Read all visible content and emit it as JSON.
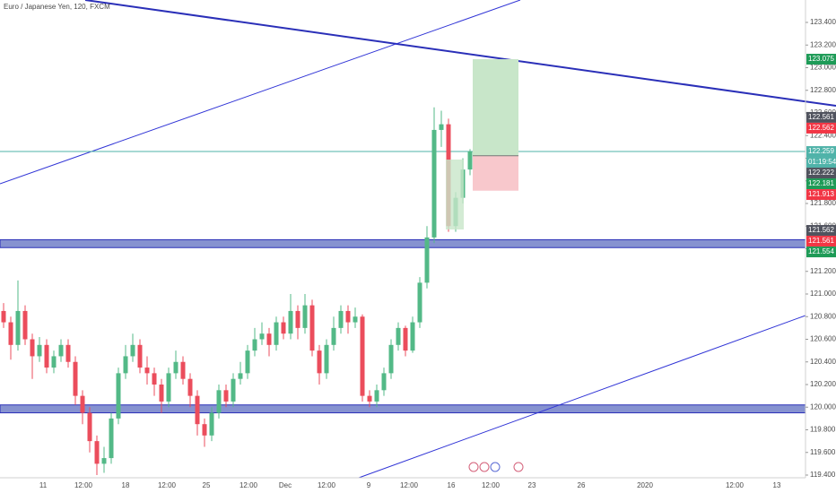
{
  "chart_data": {
    "type": "candlestick",
    "title": "Euro / Japanese Yen, 120, FXCM",
    "up_color": "#53b987",
    "down_color": "#eb4d5c",
    "ylim": [
      119.4,
      123.4
    ],
    "yticks": [
      {
        "value": 119.4,
        "label": "119.400"
      },
      {
        "value": 119.6,
        "label": "119.600"
      },
      {
        "value": 119.8,
        "label": "119.800"
      },
      {
        "value": 120.0,
        "label": "120.000"
      },
      {
        "value": 120.2,
        "label": "120.200"
      },
      {
        "value": 120.4,
        "label": "120.400"
      },
      {
        "value": 120.6,
        "label": "120.600"
      },
      {
        "value": 120.8,
        "label": "120.800"
      },
      {
        "value": 121.0,
        "label": "121.000"
      },
      {
        "value": 121.2,
        "label": "121.200"
      },
      {
        "value": 121.4,
        "label": "121.400"
      },
      {
        "value": 121.6,
        "label": "121.600"
      },
      {
        "value": 121.8,
        "label": "121.800"
      },
      {
        "value": 122.0,
        "label": "122.000"
      },
      {
        "value": 122.2,
        "label": "122.200"
      },
      {
        "value": 122.4,
        "label": "122.400"
      },
      {
        "value": 122.6,
        "label": "122.600"
      },
      {
        "value": 122.8,
        "label": "122.800"
      },
      {
        "value": 123.0,
        "label": "123.000"
      },
      {
        "value": 123.2,
        "label": "123.200"
      },
      {
        "value": 123.4,
        "label": "123.400"
      }
    ],
    "time_labels": [
      "11",
      "12:00",
      "18",
      "12:00",
      "25",
      "12:00",
      "Dec",
      "12:00",
      "9",
      "12:00",
      "16",
      "12:00",
      "23",
      "26",
      "2020",
      "12:00",
      "13"
    ],
    "candles": [
      {
        "o": 120.85,
        "h": 120.92,
        "l": 120.7,
        "c": 120.75
      },
      {
        "o": 120.75,
        "h": 120.8,
        "l": 120.42,
        "c": 120.55
      },
      {
        "o": 120.55,
        "h": 121.12,
        "l": 120.5,
        "c": 120.85
      },
      {
        "o": 120.85,
        "h": 120.9,
        "l": 120.55,
        "c": 120.6
      },
      {
        "o": 120.6,
        "h": 120.65,
        "l": 120.25,
        "c": 120.45
      },
      {
        "o": 120.45,
        "h": 120.62,
        "l": 120.4,
        "c": 120.55
      },
      {
        "o": 120.55,
        "h": 120.6,
        "l": 120.3,
        "c": 120.35
      },
      {
        "o": 120.35,
        "h": 120.5,
        "l": 120.3,
        "c": 120.45
      },
      {
        "o": 120.45,
        "h": 120.6,
        "l": 120.4,
        "c": 120.55
      },
      {
        "o": 120.55,
        "h": 120.6,
        "l": 120.35,
        "c": 120.4
      },
      {
        "o": 120.4,
        "h": 120.45,
        "l": 120.02,
        "c": 120.1
      },
      {
        "o": 120.1,
        "h": 120.15,
        "l": 119.85,
        "c": 119.95
      },
      {
        "o": 119.95,
        "h": 120.0,
        "l": 119.6,
        "c": 119.7
      },
      {
        "o": 119.7,
        "h": 119.75,
        "l": 119.4,
        "c": 119.5
      },
      {
        "o": 119.5,
        "h": 119.65,
        "l": 119.42,
        "c": 119.55
      },
      {
        "o": 119.55,
        "h": 119.95,
        "l": 119.5,
        "c": 119.9
      },
      {
        "o": 119.9,
        "h": 120.35,
        "l": 119.85,
        "c": 120.3
      },
      {
        "o": 120.3,
        "h": 120.55,
        "l": 120.25,
        "c": 120.45
      },
      {
        "o": 120.45,
        "h": 120.65,
        "l": 120.4,
        "c": 120.55
      },
      {
        "o": 120.55,
        "h": 120.6,
        "l": 120.3,
        "c": 120.35
      },
      {
        "o": 120.35,
        "h": 120.45,
        "l": 120.2,
        "c": 120.3
      },
      {
        "o": 120.3,
        "h": 120.35,
        "l": 120.1,
        "c": 120.2
      },
      {
        "o": 120.2,
        "h": 120.25,
        "l": 119.95,
        "c": 120.05
      },
      {
        "o": 120.05,
        "h": 120.35,
        "l": 120.0,
        "c": 120.3
      },
      {
        "o": 120.3,
        "h": 120.5,
        "l": 120.25,
        "c": 120.4
      },
      {
        "o": 120.4,
        "h": 120.45,
        "l": 120.2,
        "c": 120.25
      },
      {
        "o": 120.25,
        "h": 120.3,
        "l": 120.0,
        "c": 120.1
      },
      {
        "o": 120.1,
        "h": 120.15,
        "l": 119.75,
        "c": 119.85
      },
      {
        "o": 119.85,
        "h": 119.9,
        "l": 119.65,
        "c": 119.75
      },
      {
        "o": 119.75,
        "h": 120.0,
        "l": 119.7,
        "c": 119.95
      },
      {
        "o": 119.95,
        "h": 120.2,
        "l": 119.9,
        "c": 120.15
      },
      {
        "o": 120.15,
        "h": 120.2,
        "l": 120.0,
        "c": 120.05
      },
      {
        "o": 120.05,
        "h": 120.3,
        "l": 120.0,
        "c": 120.25
      },
      {
        "o": 120.25,
        "h": 120.4,
        "l": 120.2,
        "c": 120.3
      },
      {
        "o": 120.3,
        "h": 120.55,
        "l": 120.25,
        "c": 120.5
      },
      {
        "o": 120.5,
        "h": 120.7,
        "l": 120.45,
        "c": 120.6
      },
      {
        "o": 120.6,
        "h": 120.75,
        "l": 120.55,
        "c": 120.65
      },
      {
        "o": 120.65,
        "h": 120.7,
        "l": 120.45,
        "c": 120.55
      },
      {
        "o": 120.55,
        "h": 120.8,
        "l": 120.5,
        "c": 120.75
      },
      {
        "o": 120.75,
        "h": 120.8,
        "l": 120.6,
        "c": 120.65
      },
      {
        "o": 120.65,
        "h": 121.0,
        "l": 120.6,
        "c": 120.85
      },
      {
        "o": 120.85,
        "h": 120.9,
        "l": 120.6,
        "c": 120.7
      },
      {
        "o": 120.7,
        "h": 121.0,
        "l": 120.65,
        "c": 120.9
      },
      {
        "o": 120.9,
        "h": 120.95,
        "l": 120.45,
        "c": 120.5
      },
      {
        "o": 120.5,
        "h": 120.55,
        "l": 120.2,
        "c": 120.3
      },
      {
        "o": 120.3,
        "h": 120.6,
        "l": 120.25,
        "c": 120.55
      },
      {
        "o": 120.55,
        "h": 120.8,
        "l": 120.5,
        "c": 120.7
      },
      {
        "o": 120.7,
        "h": 120.9,
        "l": 120.65,
        "c": 120.85
      },
      {
        "o": 120.85,
        "h": 120.9,
        "l": 120.65,
        "c": 120.75
      },
      {
        "o": 120.75,
        "h": 120.88,
        "l": 120.7,
        "c": 120.8
      },
      {
        "o": 120.8,
        "h": 120.82,
        "l": 120.05,
        "c": 120.1
      },
      {
        "o": 120.1,
        "h": 120.15,
        "l": 120.0,
        "c": 120.05
      },
      {
        "o": 120.05,
        "h": 120.2,
        "l": 120.0,
        "c": 120.15
      },
      {
        "o": 120.15,
        "h": 120.35,
        "l": 120.1,
        "c": 120.3
      },
      {
        "o": 120.3,
        "h": 120.6,
        "l": 120.25,
        "c": 120.55
      },
      {
        "o": 120.55,
        "h": 120.75,
        "l": 120.5,
        "c": 120.7
      },
      {
        "o": 120.7,
        "h": 120.72,
        "l": 120.45,
        "c": 120.5
      },
      {
        "o": 120.5,
        "h": 120.8,
        "l": 120.48,
        "c": 120.75
      },
      {
        "o": 120.75,
        "h": 121.15,
        "l": 120.7,
        "c": 121.1
      },
      {
        "o": 121.1,
        "h": 121.6,
        "l": 121.05,
        "c": 121.5
      },
      {
        "o": 121.5,
        "h": 122.65,
        "l": 121.45,
        "c": 122.45
      },
      {
        "o": 122.45,
        "h": 122.62,
        "l": 122.3,
        "c": 122.5
      },
      {
        "o": 122.5,
        "h": 122.55,
        "l": 121.55,
        "c": 121.6
      },
      {
        "o": 121.6,
        "h": 121.9,
        "l": 121.55,
        "c": 121.85
      },
      {
        "o": 121.85,
        "h": 122.2,
        "l": 121.8,
        "c": 122.1
      },
      {
        "o": 122.1,
        "h": 122.28,
        "l": 122.05,
        "c": 122.26
      }
    ],
    "zones": [
      {
        "top": 121.48,
        "bottom": 121.41,
        "color": "#7986cb"
      },
      {
        "top": 120.02,
        "bottom": 119.95,
        "color": "#7986cb"
      }
    ],
    "trendlines": [
      {
        "values": [
          123.598,
          122.663
        ],
        "color": "#2a2fb8",
        "width": 2
      },
      {
        "values": [
          121.974,
          123.598
        ],
        "color": "#3034d6",
        "width": 1
      },
      {
        "values": [
          119.376,
          120.81
        ],
        "color": "#3034d6",
        "width": 1
      }
    ],
    "position": {
      "target": 123.075,
      "entry": 122.222,
      "stop": 121.913
    },
    "current_price": {
      "value": 122.259,
      "color": "#4fb3a9",
      "countdown": "01:19:54"
    },
    "price_labels": [
      {
        "value": 123.075,
        "color": "#1e9b57"
      },
      {
        "value": 122.561,
        "color": "#50535e"
      },
      {
        "value": 122.562,
        "color": "#f23645"
      },
      {
        "value": 122.259,
        "color": "#4fb3a9"
      },
      {
        "value": 122.222,
        "color": "#50535e"
      },
      {
        "value": 122.181,
        "color": "#1e9b57"
      },
      {
        "value": 121.913,
        "color": "#f23645"
      },
      {
        "value": 121.562,
        "color": "#50535e"
      },
      {
        "value": 121.561,
        "color": "#f23645"
      },
      {
        "value": 121.554,
        "color": "#1e9b57"
      }
    ]
  }
}
